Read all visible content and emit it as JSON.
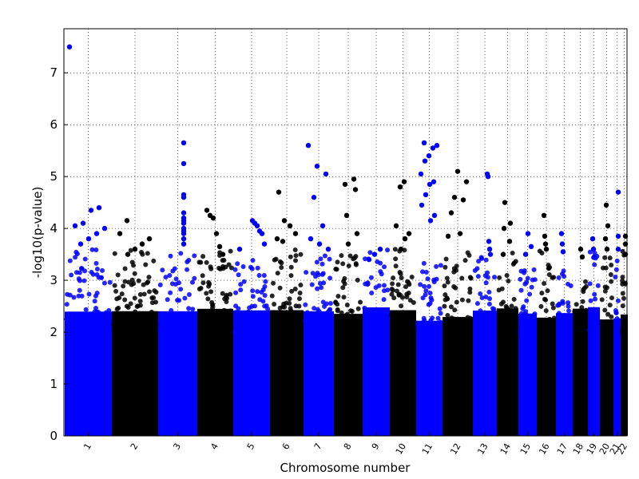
{
  "chart_data": {
    "type": "scatter",
    "subtype": "manhattan",
    "title": "",
    "xlabel": "Chromosome number",
    "ylabel": "-log10(p-value)",
    "ylim": [
      0,
      7.85
    ],
    "yticks": [
      "0",
      "1",
      "2",
      "3",
      "4",
      "5",
      "6",
      "7"
    ],
    "grid": true,
    "colors": {
      "odd": "#0000ff",
      "even": "#000000"
    },
    "chromosomes": [
      {
        "label": "1",
        "peaks": [
          7.5,
          4.4,
          4.35,
          4.1,
          4.05,
          4.0,
          3.9,
          3.8,
          3.7
        ]
      },
      {
        "label": "2",
        "peaks": [
          4.15,
          3.9,
          3.8,
          3.7,
          3.6,
          3.5
        ]
      },
      {
        "label": "3",
        "peaks": [
          5.65,
          5.25,
          4.65,
          4.6,
          4.3,
          4.2,
          4.15,
          4.1,
          4.0,
          3.95,
          3.9,
          3.8,
          3.7
        ]
      },
      {
        "label": "4",
        "peaks": [
          4.35,
          4.25,
          4.2,
          3.9,
          3.65,
          3.5
        ]
      },
      {
        "label": "5",
        "peaks": [
          4.15,
          4.1,
          4.05,
          3.95,
          3.9,
          3.7,
          3.6
        ]
      },
      {
        "label": "6",
        "peaks": [
          4.7,
          4.15,
          4.05,
          3.9,
          3.8,
          3.75
        ]
      },
      {
        "label": "7",
        "peaks": [
          5.6,
          5.2,
          5.05,
          4.6,
          4.05,
          3.8,
          3.7,
          3.6
        ]
      },
      {
        "label": "8",
        "peaks": [
          4.95,
          4.85,
          4.75,
          4.25,
          3.9,
          3.7
        ]
      },
      {
        "label": "9",
        "peaks": [
          3.6,
          3.5,
          3.4
        ]
      },
      {
        "label": "10",
        "peaks": [
          4.9,
          4.8,
          4.05,
          3.9,
          3.8,
          3.6
        ]
      },
      {
        "label": "11",
        "peaks": [
          5.65,
          5.6,
          5.55,
          5.4,
          5.3,
          5.05,
          4.9,
          4.85,
          4.65,
          4.45,
          4.25,
          4.15
        ]
      },
      {
        "label": "12",
        "peaks": [
          5.1,
          4.9,
          4.6,
          4.55,
          4.3,
          3.9,
          3.85
        ]
      },
      {
        "label": "13",
        "peaks": [
          5.05,
          5.0,
          3.75,
          3.6,
          3.5
        ]
      },
      {
        "label": "14",
        "peaks": [
          4.5,
          4.1,
          4.0,
          3.75,
          3.5
        ]
      },
      {
        "label": "15",
        "peaks": [
          3.9,
          3.65,
          3.5
        ]
      },
      {
        "label": "16",
        "peaks": [
          4.25,
          3.85,
          3.7,
          3.6
        ]
      },
      {
        "label": "17",
        "peaks": [
          3.9,
          3.7,
          3.55
        ]
      },
      {
        "label": "18",
        "peaks": [
          3.6,
          3.45
        ]
      },
      {
        "label": "19",
        "peaks": [
          3.8,
          3.6,
          3.45
        ]
      },
      {
        "label": "20",
        "peaks": [
          4.45,
          4.05,
          3.8,
          3.6
        ]
      },
      {
        "label": "21",
        "peaks": [
          4.7,
          3.85,
          3.6
        ]
      },
      {
        "label": "22",
        "peaks": [
          3.85,
          3.7,
          3.5
        ]
      }
    ]
  }
}
